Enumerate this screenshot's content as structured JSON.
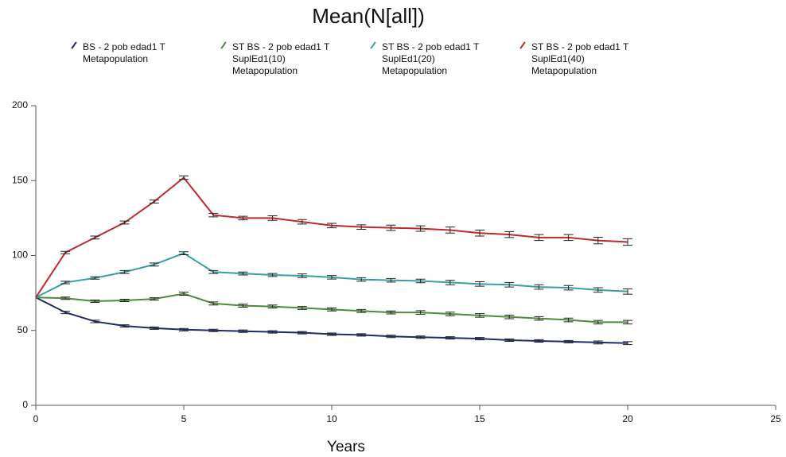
{
  "chart_data": {
    "type": "line",
    "title": "Mean(N[all])",
    "x_label": "Years",
    "x": [
      0,
      1,
      2,
      3,
      4,
      5,
      6,
      7,
      8,
      9,
      10,
      11,
      12,
      13,
      14,
      15,
      16,
      17,
      18,
      19,
      20
    ],
    "series": [
      {
        "name": "BS - 2 pob edad1 T Metapopulation",
        "color": "#1f2a6e",
        "values": [
          72,
          62,
          56,
          53,
          51.5,
          50.5,
          50,
          49.5,
          49,
          48.5,
          47.5,
          47,
          46,
          45.5,
          45,
          44.5,
          43.5,
          43,
          42.5,
          42,
          41.5
        ],
        "errors": [
          0,
          0.8,
          0.8,
          0.8,
          0.8,
          0.8,
          0.8,
          0.8,
          0.8,
          0.8,
          0.8,
          0.8,
          0.8,
          0.8,
          0.8,
          0.8,
          0.8,
          0.8,
          0.8,
          1,
          1
        ]
      },
      {
        "name": "ST BS - 2 pob edad1 T SuplEd1(10) Metapopulation",
        "color": "#4e8a3a",
        "values": [
          72,
          71.5,
          69.5,
          70,
          71,
          74.5,
          68,
          66.5,
          66,
          65,
          64,
          63,
          62,
          62,
          61,
          60,
          59,
          58,
          57,
          55.5,
          55.5
        ],
        "errors": [
          0,
          0.8,
          0.8,
          0.8,
          0.8,
          1,
          1,
          1,
          1,
          1,
          1,
          1,
          1,
          1.2,
          1.2,
          1.2,
          1.2,
          1.2,
          1.2,
          1.2,
          1.2
        ]
      },
      {
        "name": "ST BS - 2 pob edad1 T SuplEd1(20) Metapopulation",
        "color": "#3a9ea0",
        "values": [
          72,
          82,
          85,
          89,
          94,
          101.5,
          89,
          88,
          87,
          86.5,
          85.5,
          84,
          83.5,
          83,
          82,
          81,
          80.5,
          79,
          78.5,
          77,
          76
        ],
        "errors": [
          0,
          0.8,
          0.8,
          1,
          1,
          1,
          1,
          1,
          1,
          1.2,
          1.2,
          1.2,
          1.2,
          1.2,
          1.5,
          1.5,
          1.5,
          1.5,
          1.5,
          1.5,
          1.8
        ]
      },
      {
        "name": "ST BS - 2 pob edad1 T SuplEd1(40) Metapopulation",
        "color": "#c0282a",
        "values": [
          72,
          102,
          112,
          122,
          136,
          152,
          127,
          125,
          125,
          122.5,
          120,
          119,
          118.5,
          118,
          117,
          115,
          114,
          112,
          112,
          110,
          109
        ],
        "errors": [
          0,
          0.8,
          1,
          1,
          1,
          1.2,
          1.2,
          1.2,
          1.5,
          1.5,
          1.5,
          1.5,
          1.8,
          1.8,
          2,
          2,
          2,
          2,
          2,
          2.2,
          2.2
        ]
      }
    ],
    "xlim": [
      0,
      25
    ],
    "xticks": [
      0,
      5,
      10,
      15,
      20,
      25
    ],
    "ylim": [
      0,
      200
    ],
    "yticks": [
      0,
      50,
      100,
      150,
      200
    ]
  }
}
